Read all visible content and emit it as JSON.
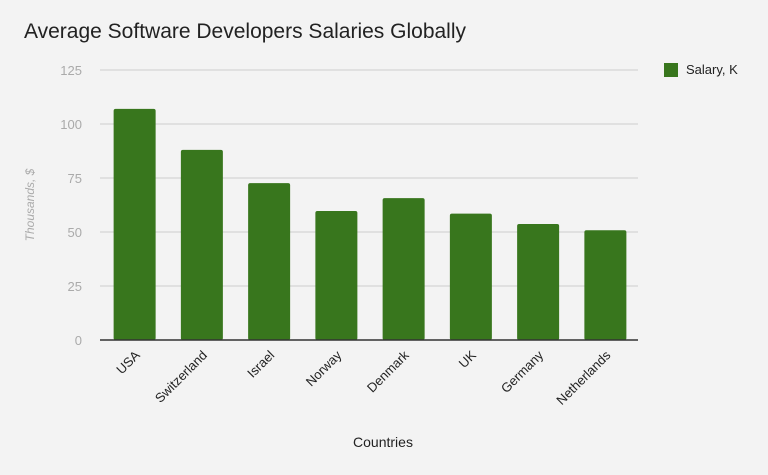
{
  "chart_data": {
    "type": "bar",
    "title": "Average Software Developers Salaries Globally",
    "xlabel": "Countries",
    "ylabel": "Thousands, $",
    "categories": [
      "USA",
      "Switzerland",
      "Israel",
      "Norway",
      "Denmark",
      "UK",
      "Germany",
      "Netherlands"
    ],
    "series": [
      {
        "name": "Salary, K",
        "values": [
          107,
          88,
          72.6,
          59.7,
          65.7,
          58.5,
          53.7,
          50.8
        ],
        "color": "#38761d"
      }
    ],
    "yticks": [
      0,
      25,
      50,
      75,
      100,
      125
    ],
    "ylim": [
      0,
      125
    ],
    "grid": true,
    "legend": "top-right"
  }
}
